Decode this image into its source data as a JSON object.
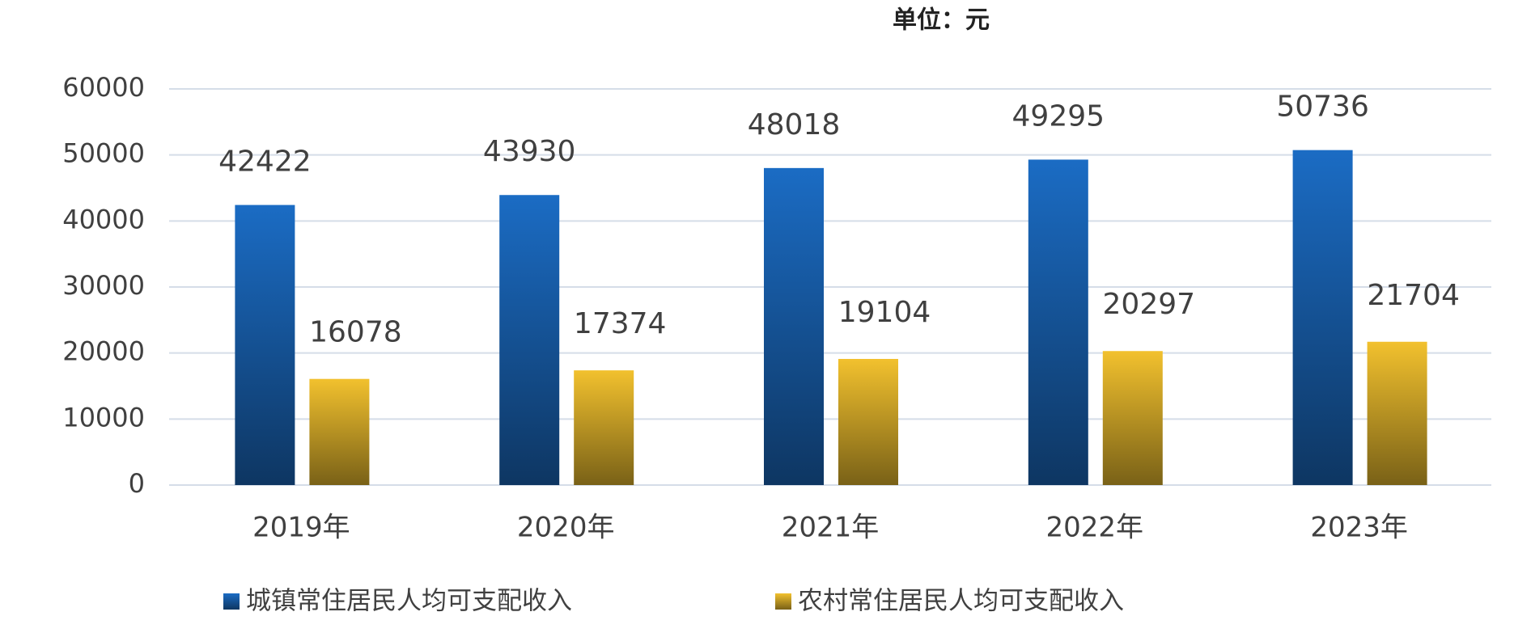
{
  "chart_data": {
    "type": "bar",
    "title": "单位：元",
    "categories": [
      "2019年",
      "2020年",
      "2021年",
      "2022年",
      "2023年"
    ],
    "series": [
      {
        "name": "城镇常住居民人均可支配收入",
        "color": "#1b6cc4",
        "values": [
          42422,
          43930,
          48018,
          49295,
          50736
        ]
      },
      {
        "name": "农村常住居民人均可支配收入",
        "color": "#f2c12e",
        "values": [
          16078,
          17374,
          19104,
          20297,
          21704
        ]
      }
    ],
    "ylim": [
      0,
      60000
    ],
    "yticks": [
      0,
      10000,
      20000,
      30000,
      40000,
      50000,
      60000
    ],
    "grid": true,
    "legend": "bottom"
  }
}
